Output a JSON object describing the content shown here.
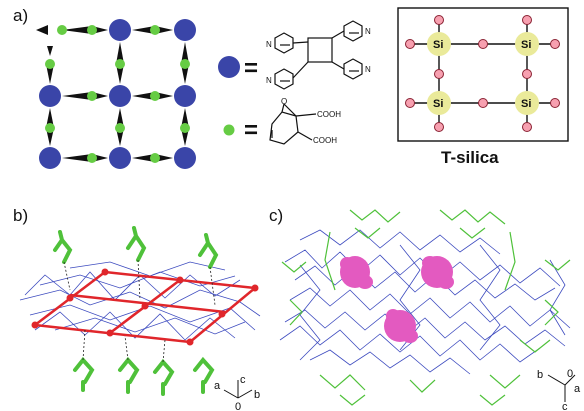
{
  "panels": {
    "a": {
      "label": "a)"
    },
    "b": {
      "label": "b)",
      "axes": {
        "a": "a",
        "b": "b",
        "c": "c",
        "origin": "0"
      }
    },
    "c": {
      "label": "c)",
      "axes": {
        "a": "a",
        "b": "b",
        "c": "c",
        "origin": "0"
      }
    }
  },
  "legend": {
    "blue_equals": "=",
    "green_equals": "=",
    "cooh_top": "COOH",
    "cooh_bottom": "COOH",
    "oxygen": "O",
    "nitrogen": "N"
  },
  "tsilica": {
    "caption": "T-silica",
    "si_label": "Si"
  },
  "colors": {
    "node_blue": "#3a45a8",
    "linker_green": "#66cc44",
    "framework_red": "#e0262b",
    "pore_magenta": "#e35ac0",
    "wire_blue": "#3d4bbf"
  }
}
